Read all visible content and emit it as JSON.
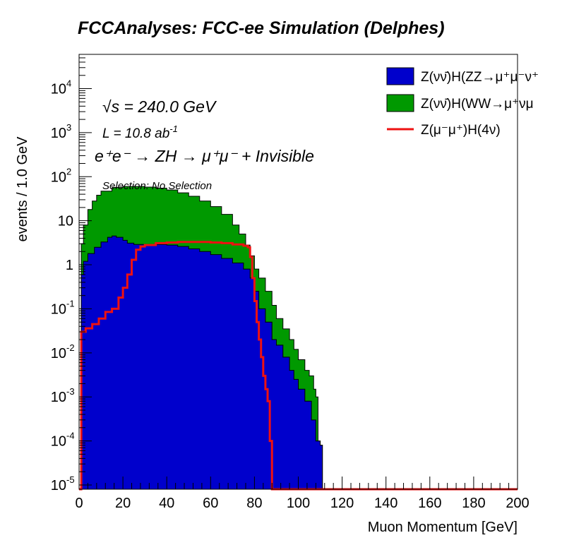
{
  "title": "FCCAnalyses: FCC-ee Simulation (Delphes)",
  "annotations": {
    "sqrt_s": "√s = 240.0 GeV",
    "luminosity_base": "L = 10.8 ab",
    "luminosity_exp": "-1",
    "process": "e⁺e⁻ → ZH → μ⁺μ⁻ + Invisible",
    "selection": "Selection: No Selection"
  },
  "colors": {
    "zz": "#0000cc",
    "ww": "#009900",
    "signal": "#ee1111"
  },
  "chart_data": {
    "type": "bar",
    "stacked": true,
    "xlabel": "Muon Momentum [GeV]",
    "ylabel": "events / 1.0 GeV",
    "xlim": [
      0,
      200
    ],
    "ylim": [
      8e-06,
      60000
    ],
    "yscale": "log",
    "xticks": [
      0,
      20,
      40,
      60,
      80,
      100,
      120,
      140,
      160,
      180,
      200
    ],
    "yticks": [
      {
        "value": 1e-05,
        "base": "10",
        "exp": "-5"
      },
      {
        "value": 0.0001,
        "base": "10",
        "exp": "-4"
      },
      {
        "value": 0.001,
        "base": "10",
        "exp": "-3"
      },
      {
        "value": 0.01,
        "base": "10",
        "exp": "-2"
      },
      {
        "value": 0.1,
        "base": "10",
        "exp": "-1"
      },
      {
        "value": 1,
        "base": "1",
        "exp": ""
      },
      {
        "value": 10,
        "base": "10",
        "exp": ""
      },
      {
        "value": 100,
        "base": "10",
        "exp": "2"
      },
      {
        "value": 1000,
        "base": "10",
        "exp": "3"
      },
      {
        "value": 10000,
        "base": "10",
        "exp": "4"
      }
    ],
    "legend_position": "top-right",
    "series": [
      {
        "name": "Z(νν̄)H(ZZ→μ⁺μ⁻ν⁺",
        "style": "fill",
        "color": "#0000cc",
        "points": [
          [
            1,
            0.6
          ],
          [
            2,
            1.2
          ],
          [
            4,
            1.8
          ],
          [
            7,
            2.5
          ],
          [
            10,
            3.3
          ],
          [
            13,
            4.2
          ],
          [
            15,
            4.5
          ],
          [
            17,
            4.2
          ],
          [
            20,
            3.6
          ],
          [
            22,
            3.1
          ],
          [
            25,
            2.9
          ],
          [
            30,
            2.9
          ],
          [
            35,
            2.9
          ],
          [
            40,
            2.8
          ],
          [
            45,
            2.6
          ],
          [
            50,
            2.3
          ],
          [
            55,
            2.0
          ],
          [
            60,
            1.7
          ],
          [
            65,
            1.4
          ],
          [
            70,
            1.1
          ],
          [
            75,
            0.8
          ],
          [
            78,
            0.5
          ],
          [
            80,
            0.25
          ],
          [
            82,
            0.1
          ],
          [
            85,
            0.05
          ],
          [
            88,
            0.02
          ],
          [
            90,
            0.015
          ],
          [
            93,
            0.008
          ],
          [
            96,
            0.004
          ],
          [
            98,
            0.0025
          ],
          [
            100,
            0.0015
          ],
          [
            103,
            0.0008
          ],
          [
            106,
            0.0003
          ],
          [
            108,
            0.0001
          ],
          [
            110,
            8e-05
          ]
        ]
      },
      {
        "name": "Z(νν̄)H(WW→μ⁺νμ",
        "style": "fill",
        "color": "#009900",
        "points": [
          [
            1,
            3
          ],
          [
            2,
            8
          ],
          [
            4,
            18
          ],
          [
            6,
            28
          ],
          [
            8,
            38
          ],
          [
            10,
            47
          ],
          [
            15,
            57
          ],
          [
            20,
            60
          ],
          [
            25,
            60
          ],
          [
            30,
            58
          ],
          [
            35,
            55
          ],
          [
            40,
            50
          ],
          [
            45,
            43
          ],
          [
            50,
            36
          ],
          [
            55,
            28
          ],
          [
            60,
            21
          ],
          [
            65,
            14
          ],
          [
            70,
            8
          ],
          [
            73,
            5
          ],
          [
            76,
            2.8
          ],
          [
            78,
            1.6
          ],
          [
            80,
            0.8
          ],
          [
            82,
            0.5
          ],
          [
            85,
            0.25
          ],
          [
            88,
            0.12
          ],
          [
            90,
            0.06
          ],
          [
            93,
            0.035
          ],
          [
            96,
            0.02
          ],
          [
            98,
            0.012
          ],
          [
            100,
            0.007
          ],
          [
            103,
            0.004
          ],
          [
            105,
            0.003
          ],
          [
            107,
            0.0015
          ],
          [
            108,
            0.001
          ],
          [
            109,
            0.0001
          ],
          [
            110,
            8e-05
          ]
        ]
      },
      {
        "name": "Z(μ⁻μ⁺)H(4ν)",
        "style": "line",
        "color": "#ee1111",
        "points": [
          [
            0,
            8e-06
          ],
          [
            1,
            0.03
          ],
          [
            3,
            0.036
          ],
          [
            6,
            0.045
          ],
          [
            9,
            0.06
          ],
          [
            12,
            0.085
          ],
          [
            15,
            0.1
          ],
          [
            18,
            0.18
          ],
          [
            20,
            0.3
          ],
          [
            22,
            0.6
          ],
          [
            24,
            1.3
          ],
          [
            26,
            2.2
          ],
          [
            28,
            2.6
          ],
          [
            30,
            2.8
          ],
          [
            35,
            3.1
          ],
          [
            40,
            3.2
          ],
          [
            45,
            3.3
          ],
          [
            50,
            3.3
          ],
          [
            55,
            3.3
          ],
          [
            60,
            3.2
          ],
          [
            65,
            3.1
          ],
          [
            70,
            2.9
          ],
          [
            75,
            2.7
          ],
          [
            77,
            2.5
          ],
          [
            78,
            1.5
          ],
          [
            79,
            0.5
          ],
          [
            80,
            0.15
          ],
          [
            81,
            0.05
          ],
          [
            82,
            0.02
          ],
          [
            83,
            0.008
          ],
          [
            84,
            0.003
          ],
          [
            85,
            0.0015
          ],
          [
            86,
            0.0008
          ],
          [
            87,
            0.0001
          ],
          [
            88,
            8e-06
          ],
          [
            200,
            8e-06
          ]
        ]
      }
    ]
  }
}
